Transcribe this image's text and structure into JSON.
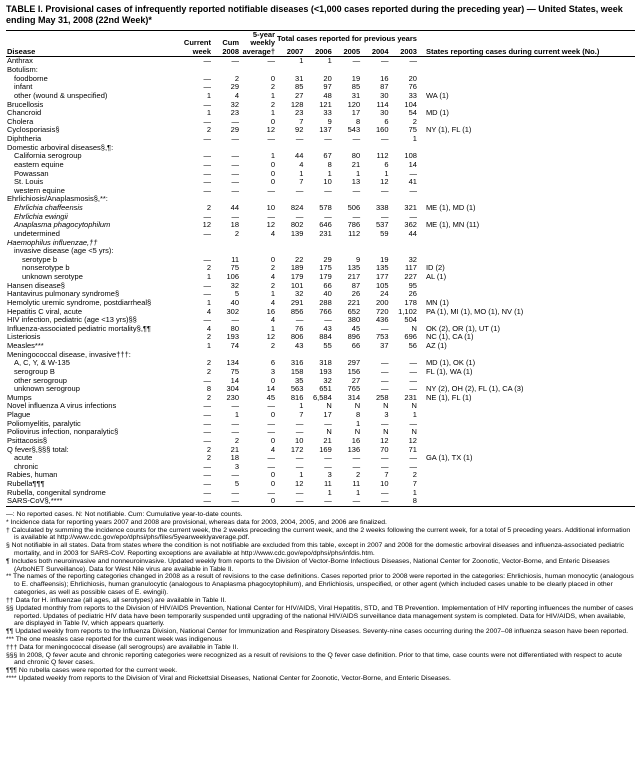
{
  "title": "TABLE I. Provisional cases of infrequently reported notifiable diseases (<1,000 cases reported during the preceding year) — United States, week ending May 31, 2008 (22nd Week)*",
  "headers": {
    "disease": "Disease",
    "current_week": "Current week",
    "cum_2008": "Cum 2008",
    "five_year": "5-year weekly average†",
    "prev_years": "Total cases reported for previous years",
    "y2007": "2007",
    "y2006": "2006",
    "y2005": "2005",
    "y2004": "2004",
    "y2003": "2003",
    "states": "States reporting cases during current week (No.)"
  },
  "rows": [
    {
      "d": "Anthrax",
      "i": 0,
      "v": [
        "—",
        "—",
        "—",
        "1",
        "1",
        "—",
        "—",
        "—"
      ],
      "s": ""
    },
    {
      "d": "Botulism:",
      "i": 0,
      "v": [
        "",
        "",
        "",
        "",
        "",
        "",
        "",
        ""
      ],
      "s": ""
    },
    {
      "d": "foodborne",
      "i": 1,
      "v": [
        "—",
        "2",
        "0",
        "31",
        "20",
        "19",
        "16",
        "20"
      ],
      "s": ""
    },
    {
      "d": "infant",
      "i": 1,
      "v": [
        "—",
        "29",
        "2",
        "85",
        "97",
        "85",
        "87",
        "76"
      ],
      "s": ""
    },
    {
      "d": "other (wound & unspecified)",
      "i": 1,
      "v": [
        "1",
        "4",
        "1",
        "27",
        "48",
        "31",
        "30",
        "33"
      ],
      "s": "WA (1)"
    },
    {
      "d": "Brucellosis",
      "i": 0,
      "v": [
        "—",
        "32",
        "2",
        "128",
        "121",
        "120",
        "114",
        "104"
      ],
      "s": ""
    },
    {
      "d": "Chancroid",
      "i": 0,
      "v": [
        "1",
        "23",
        "1",
        "23",
        "33",
        "17",
        "30",
        "54"
      ],
      "s": "MD (1)"
    },
    {
      "d": "Cholera",
      "i": 0,
      "v": [
        "—",
        "—",
        "0",
        "7",
        "9",
        "8",
        "6",
        "2"
      ],
      "s": ""
    },
    {
      "d": "Cyclosporiasis§",
      "i": 0,
      "v": [
        "2",
        "29",
        "12",
        "92",
        "137",
        "543",
        "160",
        "75"
      ],
      "s": "NY (1), FL (1)"
    },
    {
      "d": "Diphtheria",
      "i": 0,
      "v": [
        "—",
        "—",
        "—",
        "—",
        "—",
        "—",
        "—",
        "1"
      ],
      "s": ""
    },
    {
      "d": "Domestic arboviral diseases§,¶:",
      "i": 0,
      "v": [
        "",
        "",
        "",
        "",
        "",
        "",
        "",
        ""
      ],
      "s": ""
    },
    {
      "d": "California serogroup",
      "i": 1,
      "v": [
        "—",
        "—",
        "1",
        "44",
        "67",
        "80",
        "112",
        "108"
      ],
      "s": ""
    },
    {
      "d": "eastern equine",
      "i": 1,
      "v": [
        "—",
        "—",
        "0",
        "4",
        "8",
        "21",
        "6",
        "14"
      ],
      "s": ""
    },
    {
      "d": "Powassan",
      "i": 1,
      "v": [
        "—",
        "—",
        "0",
        "1",
        "1",
        "1",
        "1",
        "—"
      ],
      "s": ""
    },
    {
      "d": "St. Louis",
      "i": 1,
      "v": [
        "—",
        "—",
        "0",
        "7",
        "10",
        "13",
        "12",
        "41"
      ],
      "s": ""
    },
    {
      "d": "western equine",
      "i": 1,
      "v": [
        "—",
        "—",
        "—",
        "—",
        "—",
        "—",
        "—",
        "—"
      ],
      "s": ""
    },
    {
      "d": "Ehrlichiosis/Anaplasmosis§,**:",
      "i": 0,
      "v": [
        "",
        "",
        "",
        "",
        "",
        "",
        "",
        ""
      ],
      "s": ""
    },
    {
      "d": "Ehrlichia chaffeensis",
      "i": 1,
      "it": true,
      "v": [
        "2",
        "44",
        "10",
        "824",
        "578",
        "506",
        "338",
        "321"
      ],
      "s": "ME (1), MD (1)"
    },
    {
      "d": "Ehrlichia ewingii",
      "i": 1,
      "it": true,
      "v": [
        "—",
        "—",
        "—",
        "—",
        "—",
        "—",
        "—",
        "—"
      ],
      "s": ""
    },
    {
      "d": "Anaplasma phagocytophilum",
      "i": 1,
      "it": true,
      "v": [
        "12",
        "18",
        "12",
        "802",
        "646",
        "786",
        "537",
        "362"
      ],
      "s": "ME (1), MN (11)"
    },
    {
      "d": "undetermined",
      "i": 1,
      "v": [
        "—",
        "2",
        "4",
        "139",
        "231",
        "112",
        "59",
        "44"
      ],
      "s": ""
    },
    {
      "d": "Haemophilus influenzae,††",
      "i": 0,
      "it": true,
      "v": [
        "",
        "",
        "",
        "",
        "",
        "",
        "",
        ""
      ],
      "s": ""
    },
    {
      "d": "invasive disease (age <5 yrs):",
      "i": 1,
      "v": [
        "",
        "",
        "",
        "",
        "",
        "",
        "",
        ""
      ],
      "s": ""
    },
    {
      "d": "serotype b",
      "i": 2,
      "v": [
        "—",
        "11",
        "0",
        "22",
        "29",
        "9",
        "19",
        "32"
      ],
      "s": ""
    },
    {
      "d": "nonserotype b",
      "i": 2,
      "v": [
        "2",
        "75",
        "2",
        "189",
        "175",
        "135",
        "135",
        "117"
      ],
      "s": "ID (2)"
    },
    {
      "d": "unknown serotype",
      "i": 2,
      "v": [
        "1",
        "106",
        "4",
        "179",
        "179",
        "217",
        "177",
        "227"
      ],
      "s": "AL (1)"
    },
    {
      "d": "Hansen disease§",
      "i": 0,
      "v": [
        "—",
        "32",
        "2",
        "101",
        "66",
        "87",
        "105",
        "95"
      ],
      "s": ""
    },
    {
      "d": "Hantavirus pulmonary syndrome§",
      "i": 0,
      "v": [
        "—",
        "5",
        "1",
        "32",
        "40",
        "26",
        "24",
        "26"
      ],
      "s": ""
    },
    {
      "d": "Hemolytic uremic syndrome, postdiarrheal§",
      "i": 0,
      "v": [
        "1",
        "40",
        "4",
        "291",
        "288",
        "221",
        "200",
        "178"
      ],
      "s": "MN (1)"
    },
    {
      "d": "Hepatitis C viral, acute",
      "i": 0,
      "v": [
        "4",
        "302",
        "16",
        "856",
        "766",
        "652",
        "720",
        "1,102"
      ],
      "s": "PA (1), MI (1), MO (1), NV (1)"
    },
    {
      "d": "HIV infection, pediatric (age <13 yrs)§§",
      "i": 0,
      "v": [
        "—",
        "—",
        "4",
        "—",
        "—",
        "380",
        "436",
        "504"
      ],
      "s": ""
    },
    {
      "d": "Influenza-associated pediatric mortality§,¶¶",
      "i": 0,
      "v": [
        "4",
        "80",
        "1",
        "76",
        "43",
        "45",
        "—",
        "N"
      ],
      "s": "OK (2), OR (1), UT (1)"
    },
    {
      "d": "Listeriosis",
      "i": 0,
      "v": [
        "2",
        "193",
        "12",
        "806",
        "884",
        "896",
        "753",
        "696"
      ],
      "s": "NC (1), CA (1)"
    },
    {
      "d": "Measles***",
      "i": 0,
      "v": [
        "1",
        "74",
        "2",
        "43",
        "55",
        "66",
        "37",
        "56"
      ],
      "s": "AZ (1)"
    },
    {
      "d": "Meningococcal disease, invasive†††:",
      "i": 0,
      "v": [
        "",
        "",
        "",
        "",
        "",
        "",
        "",
        ""
      ],
      "s": ""
    },
    {
      "d": "A, C, Y, & W-135",
      "i": 1,
      "v": [
        "2",
        "134",
        "6",
        "316",
        "318",
        "297",
        "—",
        "—"
      ],
      "s": "MD (1), OK (1)"
    },
    {
      "d": "serogroup B",
      "i": 1,
      "v": [
        "2",
        "75",
        "3",
        "158",
        "193",
        "156",
        "—",
        "—"
      ],
      "s": "FL (1), WA (1)"
    },
    {
      "d": "other serogroup",
      "i": 1,
      "v": [
        "—",
        "14",
        "0",
        "35",
        "32",
        "27",
        "—",
        "—"
      ],
      "s": ""
    },
    {
      "d": "unknown serogroup",
      "i": 1,
      "v": [
        "8",
        "304",
        "14",
        "563",
        "651",
        "765",
        "—",
        "—"
      ],
      "s": "NY (2), OH (2), FL (1), CA (3)"
    },
    {
      "d": "Mumps",
      "i": 0,
      "v": [
        "2",
        "230",
        "45",
        "816",
        "6,584",
        "314",
        "258",
        "231"
      ],
      "s": "NE (1), FL (1)"
    },
    {
      "d": "Novel influenza A virus infections",
      "i": 0,
      "v": [
        "—",
        "—",
        "—",
        "1",
        "N",
        "N",
        "N",
        "N"
      ],
      "s": ""
    },
    {
      "d": "Plague",
      "i": 0,
      "v": [
        "—",
        "1",
        "0",
        "7",
        "17",
        "8",
        "3",
        "1"
      ],
      "s": ""
    },
    {
      "d": "Poliomyelitis, paralytic",
      "i": 0,
      "v": [
        "—",
        "—",
        "—",
        "—",
        "—",
        "1",
        "—",
        "—"
      ],
      "s": ""
    },
    {
      "d": "Poliovirus infection, nonparalytic§",
      "i": 0,
      "v": [
        "—",
        "—",
        "—",
        "—",
        "N",
        "N",
        "N",
        "N"
      ],
      "s": ""
    },
    {
      "d": "Psittacosis§",
      "i": 0,
      "v": [
        "—",
        "2",
        "0",
        "10",
        "21",
        "16",
        "12",
        "12"
      ],
      "s": ""
    },
    {
      "d": "Q fever§,§§§ total:",
      "i": 0,
      "v": [
        "2",
        "21",
        "4",
        "172",
        "169",
        "136",
        "70",
        "71"
      ],
      "s": ""
    },
    {
      "d": "acute",
      "i": 1,
      "v": [
        "2",
        "18",
        "—",
        "—",
        "—",
        "—",
        "—",
        "—"
      ],
      "s": "GA (1), TX (1)"
    },
    {
      "d": "chronic",
      "i": 1,
      "v": [
        "—",
        "3",
        "—",
        "—",
        "—",
        "—",
        "—",
        "—"
      ],
      "s": ""
    },
    {
      "d": "Rabies, human",
      "i": 0,
      "v": [
        "—",
        "—",
        "0",
        "1",
        "3",
        "2",
        "7",
        "2"
      ],
      "s": ""
    },
    {
      "d": "Rubella¶¶¶",
      "i": 0,
      "v": [
        "—",
        "5",
        "0",
        "12",
        "11",
        "11",
        "10",
        "7"
      ],
      "s": ""
    },
    {
      "d": "Rubella, congenital syndrome",
      "i": 0,
      "v": [
        "—",
        "—",
        "—",
        "—",
        "1",
        "1",
        "—",
        "1"
      ],
      "s": ""
    },
    {
      "d": "SARS-CoV§,****",
      "i": 0,
      "v": [
        "—",
        "—",
        "0",
        "—",
        "—",
        "—",
        "—",
        "8"
      ],
      "s": ""
    }
  ],
  "footnotes": [
    "—: No reported cases.    N: Not notifiable.    Cum: Cumulative year-to-date counts.",
    "* Incidence data for reporting years 2007 and 2008 are provisional, whereas data for 2003, 2004, 2005, and 2006 are finalized.",
    "† Calculated by summing the incidence counts for the current week, the 2 weeks preceding the current week, and the 2 weeks following the current week, for a total of 5 preceding years. Additional information is available at http://www.cdc.gov/epo/dphsi/phs/files/5yearweeklyaverage.pdf.",
    "§ Not notifiable in all states. Data from states where the condition is not notifiable are excluded from this table, except in 2007 and 2008 for the domestic arboviral diseases and influenza-associated pediatric mortality, and in 2003 for SARS-CoV. Reporting exceptions are available at http://www.cdc.gov/epo/dphsi/phs/infdis.htm.",
    "¶ Includes both neuroinvasive and nonneuroinvasive. Updated weekly from reports to the Division of Vector-Borne Infectious Diseases, National Center for Zoonotic, Vector-Borne, and Enteric Diseases (ArboNET Surveillance). Data for West Nile virus are available in Table II.",
    "** The names of the reporting categories changed in 2008 as a result of revisions to the case definitions. Cases reported prior to 2008 were reported in the categories: Ehrlichiosis, human monocytic (analogous to E. chaffeensis); Ehrlichiosis, human granulocytic (analogous to Anaplasma phagocytophilum), and Ehrlichiosis, unspecified, or other agent (which included cases unable to be clearly placed in other categories, as well as possible cases of E. ewingii).",
    "†† Data for H. influenzae (all ages, all serotypes) are available in Table II.",
    "§§ Updated monthly from reports to the Division of HIV/AIDS Prevention, National Center for HIV/AIDS, Viral Hepatitis, STD, and TB Prevention. Implementation of HIV reporting influences the number of cases reported. Updates of pediatric HIV data have been temporarily suspended until upgrading of the national HIV/AIDS surveillance data management system is completed. Data for HIV/AIDS, when available, are displayed in Table IV, which appears quarterly.",
    "¶¶ Updated weekly from reports to the Influenza Division, National Center for Immunization and Respiratory Diseases. Seventy-nine cases occurring during the 2007–08 influenza season have been reported.",
    "*** The one measles case reported for the current week was indigenous",
    "††† Data for meningococcal disease (all serogroups) are available in Table II.",
    "§§§ In 2008, Q fever acute and chronic reporting categories were recognized as a result of revisions to the Q fever case definition. Prior to that time, case counts were not differentiated with respect to acute and chronic Q fever cases.",
    "¶¶¶ No rubella cases were reported for the current week.",
    "**** Updated weekly from reports to the Division of Viral and Rickettsial Diseases, National Center for Zoonotic, Vector-Borne, and Enteric Diseases."
  ]
}
